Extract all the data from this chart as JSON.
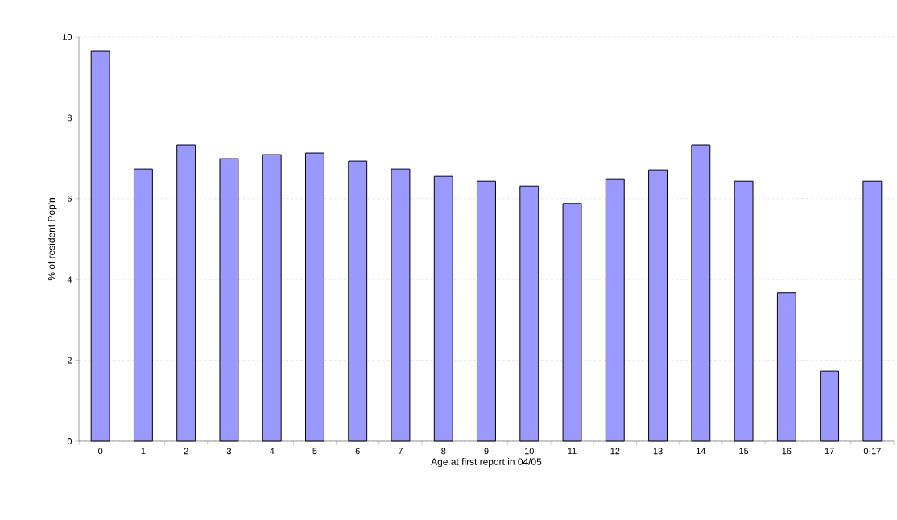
{
  "chart_data": {
    "type": "bar",
    "xlabel": "Age at first report in 04/05",
    "ylabel": "% of resident Pop'n",
    "categories": [
      "0",
      "1",
      "2",
      "3",
      "4",
      "5",
      "6",
      "7",
      "8",
      "9",
      "10",
      "11",
      "12",
      "13",
      "14",
      "15",
      "16",
      "17",
      "0-17"
    ],
    "values": [
      9.66,
      6.73,
      7.33,
      6.99,
      7.09,
      7.13,
      6.93,
      6.73,
      6.55,
      6.43,
      6.31,
      5.88,
      6.49,
      6.71,
      7.33,
      6.43,
      3.67,
      1.73,
      6.43
    ],
    "color": "#9999ff",
    "ylim": [
      0,
      10
    ],
    "yticks": [
      0,
      2,
      4,
      6,
      8,
      10
    ],
    "grid": "y"
  }
}
